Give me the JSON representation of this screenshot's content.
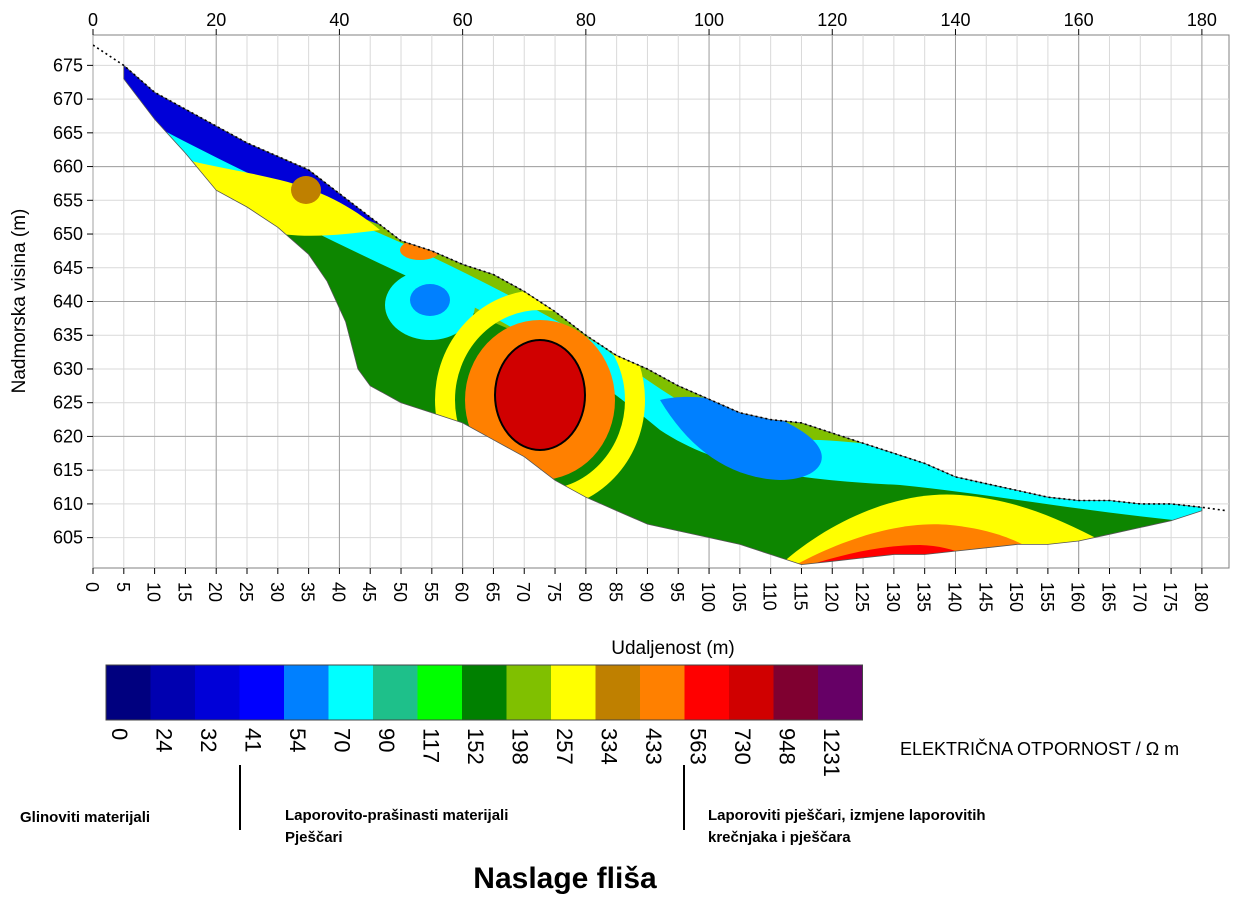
{
  "chart_data": {
    "type": "heatmap",
    "title": "",
    "xlabel": "Udaljenost (m)",
    "ylabel": "Nadmorska visina (m)",
    "x_top_ticks": [
      "0",
      "20",
      "40",
      "60",
      "80",
      "100",
      "120",
      "140",
      "160",
      "180"
    ],
    "x_top_values": [
      0,
      20,
      40,
      60,
      80,
      100,
      120,
      140,
      160,
      180
    ],
    "x_bottom_ticks": [
      "0",
      "5",
      "10",
      "15",
      "20",
      "25",
      "30",
      "35",
      "40",
      "45",
      "50",
      "55",
      "60",
      "65",
      "70",
      "75",
      "80",
      "85",
      "90",
      "95",
      "100",
      "105",
      "110",
      "115",
      "120",
      "125",
      "130",
      "135",
      "140",
      "145",
      "150",
      "155",
      "160",
      "165",
      "170",
      "175",
      "180"
    ],
    "x_bottom_values": [
      0,
      5,
      10,
      15,
      20,
      25,
      30,
      35,
      40,
      45,
      50,
      55,
      60,
      65,
      70,
      75,
      80,
      85,
      90,
      95,
      100,
      105,
      110,
      115,
      120,
      125,
      130,
      135,
      140,
      145,
      150,
      155,
      160,
      165,
      170,
      175,
      180
    ],
    "y_ticks": [
      "675",
      "670",
      "665",
      "660",
      "655",
      "650",
      "645",
      "640",
      "635",
      "630",
      "625",
      "620",
      "615",
      "610",
      "605"
    ],
    "y_values": [
      675,
      670,
      665,
      660,
      655,
      650,
      645,
      640,
      635,
      630,
      625,
      620,
      615,
      610,
      605
    ],
    "xlim": [
      0,
      184.4
    ],
    "ylim": [
      600.5,
      679.5
    ],
    "grid": true,
    "surface_line": [
      [
        0,
        678
      ],
      [
        5,
        675
      ],
      [
        10,
        671
      ],
      [
        15,
        668.5
      ],
      [
        20,
        666
      ],
      [
        25,
        663.5
      ],
      [
        30,
        661.5
      ],
      [
        35,
        659.5
      ],
      [
        40,
        656
      ],
      [
        45,
        652.5
      ],
      [
        50,
        649
      ],
      [
        55,
        647.5
      ],
      [
        60,
        645.5
      ],
      [
        65,
        644
      ],
      [
        70,
        641.5
      ],
      [
        75,
        638.5
      ],
      [
        80,
        635
      ],
      [
        85,
        632
      ],
      [
        90,
        630
      ],
      [
        95,
        627.5
      ],
      [
        100,
        625.5
      ],
      [
        105,
        623.5
      ],
      [
        110,
        622.5
      ],
      [
        115,
        622
      ],
      [
        120,
        620.5
      ],
      [
        125,
        619
      ],
      [
        130,
        617.5
      ],
      [
        135,
        616
      ],
      [
        140,
        614
      ],
      [
        145,
        613
      ],
      [
        150,
        612
      ],
      [
        155,
        611
      ],
      [
        160,
        610.5
      ],
      [
        165,
        610.5
      ],
      [
        170,
        610
      ],
      [
        175,
        610
      ],
      [
        180,
        609.5
      ],
      [
        184,
        609
      ]
    ],
    "model_bottom": [
      [
        180,
        609
      ],
      [
        175,
        607.5
      ],
      [
        170,
        606.5
      ],
      [
        165,
        605.5
      ],
      [
        160,
        604.5
      ],
      [
        155,
        604
      ],
      [
        150,
        604
      ],
      [
        145,
        603.5
      ],
      [
        140,
        603
      ],
      [
        135,
        602.5
      ],
      [
        130,
        602.5
      ],
      [
        125,
        602
      ],
      [
        120,
        601.5
      ],
      [
        115,
        601
      ],
      [
        110,
        602.5
      ],
      [
        105,
        604
      ],
      [
        100,
        605
      ],
      [
        95,
        606
      ],
      [
        90,
        607
      ],
      [
        85,
        609
      ],
      [
        80,
        611
      ],
      [
        75,
        613.5
      ],
      [
        70,
        617
      ],
      [
        65,
        619.5
      ],
      [
        60,
        622
      ],
      [
        55,
        623.5
      ],
      [
        50,
        625
      ],
      [
        45,
        627.5
      ],
      [
        43,
        630
      ],
      [
        41,
        637
      ],
      [
        38,
        643
      ],
      [
        35,
        647
      ],
      [
        30,
        651
      ],
      [
        25,
        654
      ],
      [
        20,
        656.5
      ],
      [
        15,
        662
      ],
      [
        10,
        667
      ],
      [
        5,
        673
      ]
    ],
    "colorbar": {
      "colors": [
        "#00007f",
        "#0000b0",
        "#0000d8",
        "#0000ff",
        "#0080ff",
        "#00ffff",
        "#1ec08a",
        "#00ff00",
        "#008000",
        "#80c000",
        "#ffff00",
        "#bf8000",
        "#ff8000",
        "#ff0000",
        "#d00000",
        "#7f0030",
        "#660066"
      ],
      "labels": [
        "0",
        "24",
        "32",
        "41",
        "54",
        "70",
        "90",
        "117",
        "152",
        "198",
        "257",
        "334",
        "433",
        "563",
        "730",
        "948",
        "1231"
      ]
    },
    "colorbar_title": "ELEKTRIČNA OTPORNOST / ",
    "colorbar_unit": "Ω m",
    "annotations": {
      "zone1": "Glinoviti  materijali",
      "zone2_line1": "Laporovito-prašinasti  materijali",
      "zone2_line2": "Pješčari",
      "zone3_line1": "Laporoviti pješčari, izmjene laporovitih",
      "zone3_line2": "krečnjaka i pješčara",
      "caption": "Naslage fliša"
    }
  }
}
